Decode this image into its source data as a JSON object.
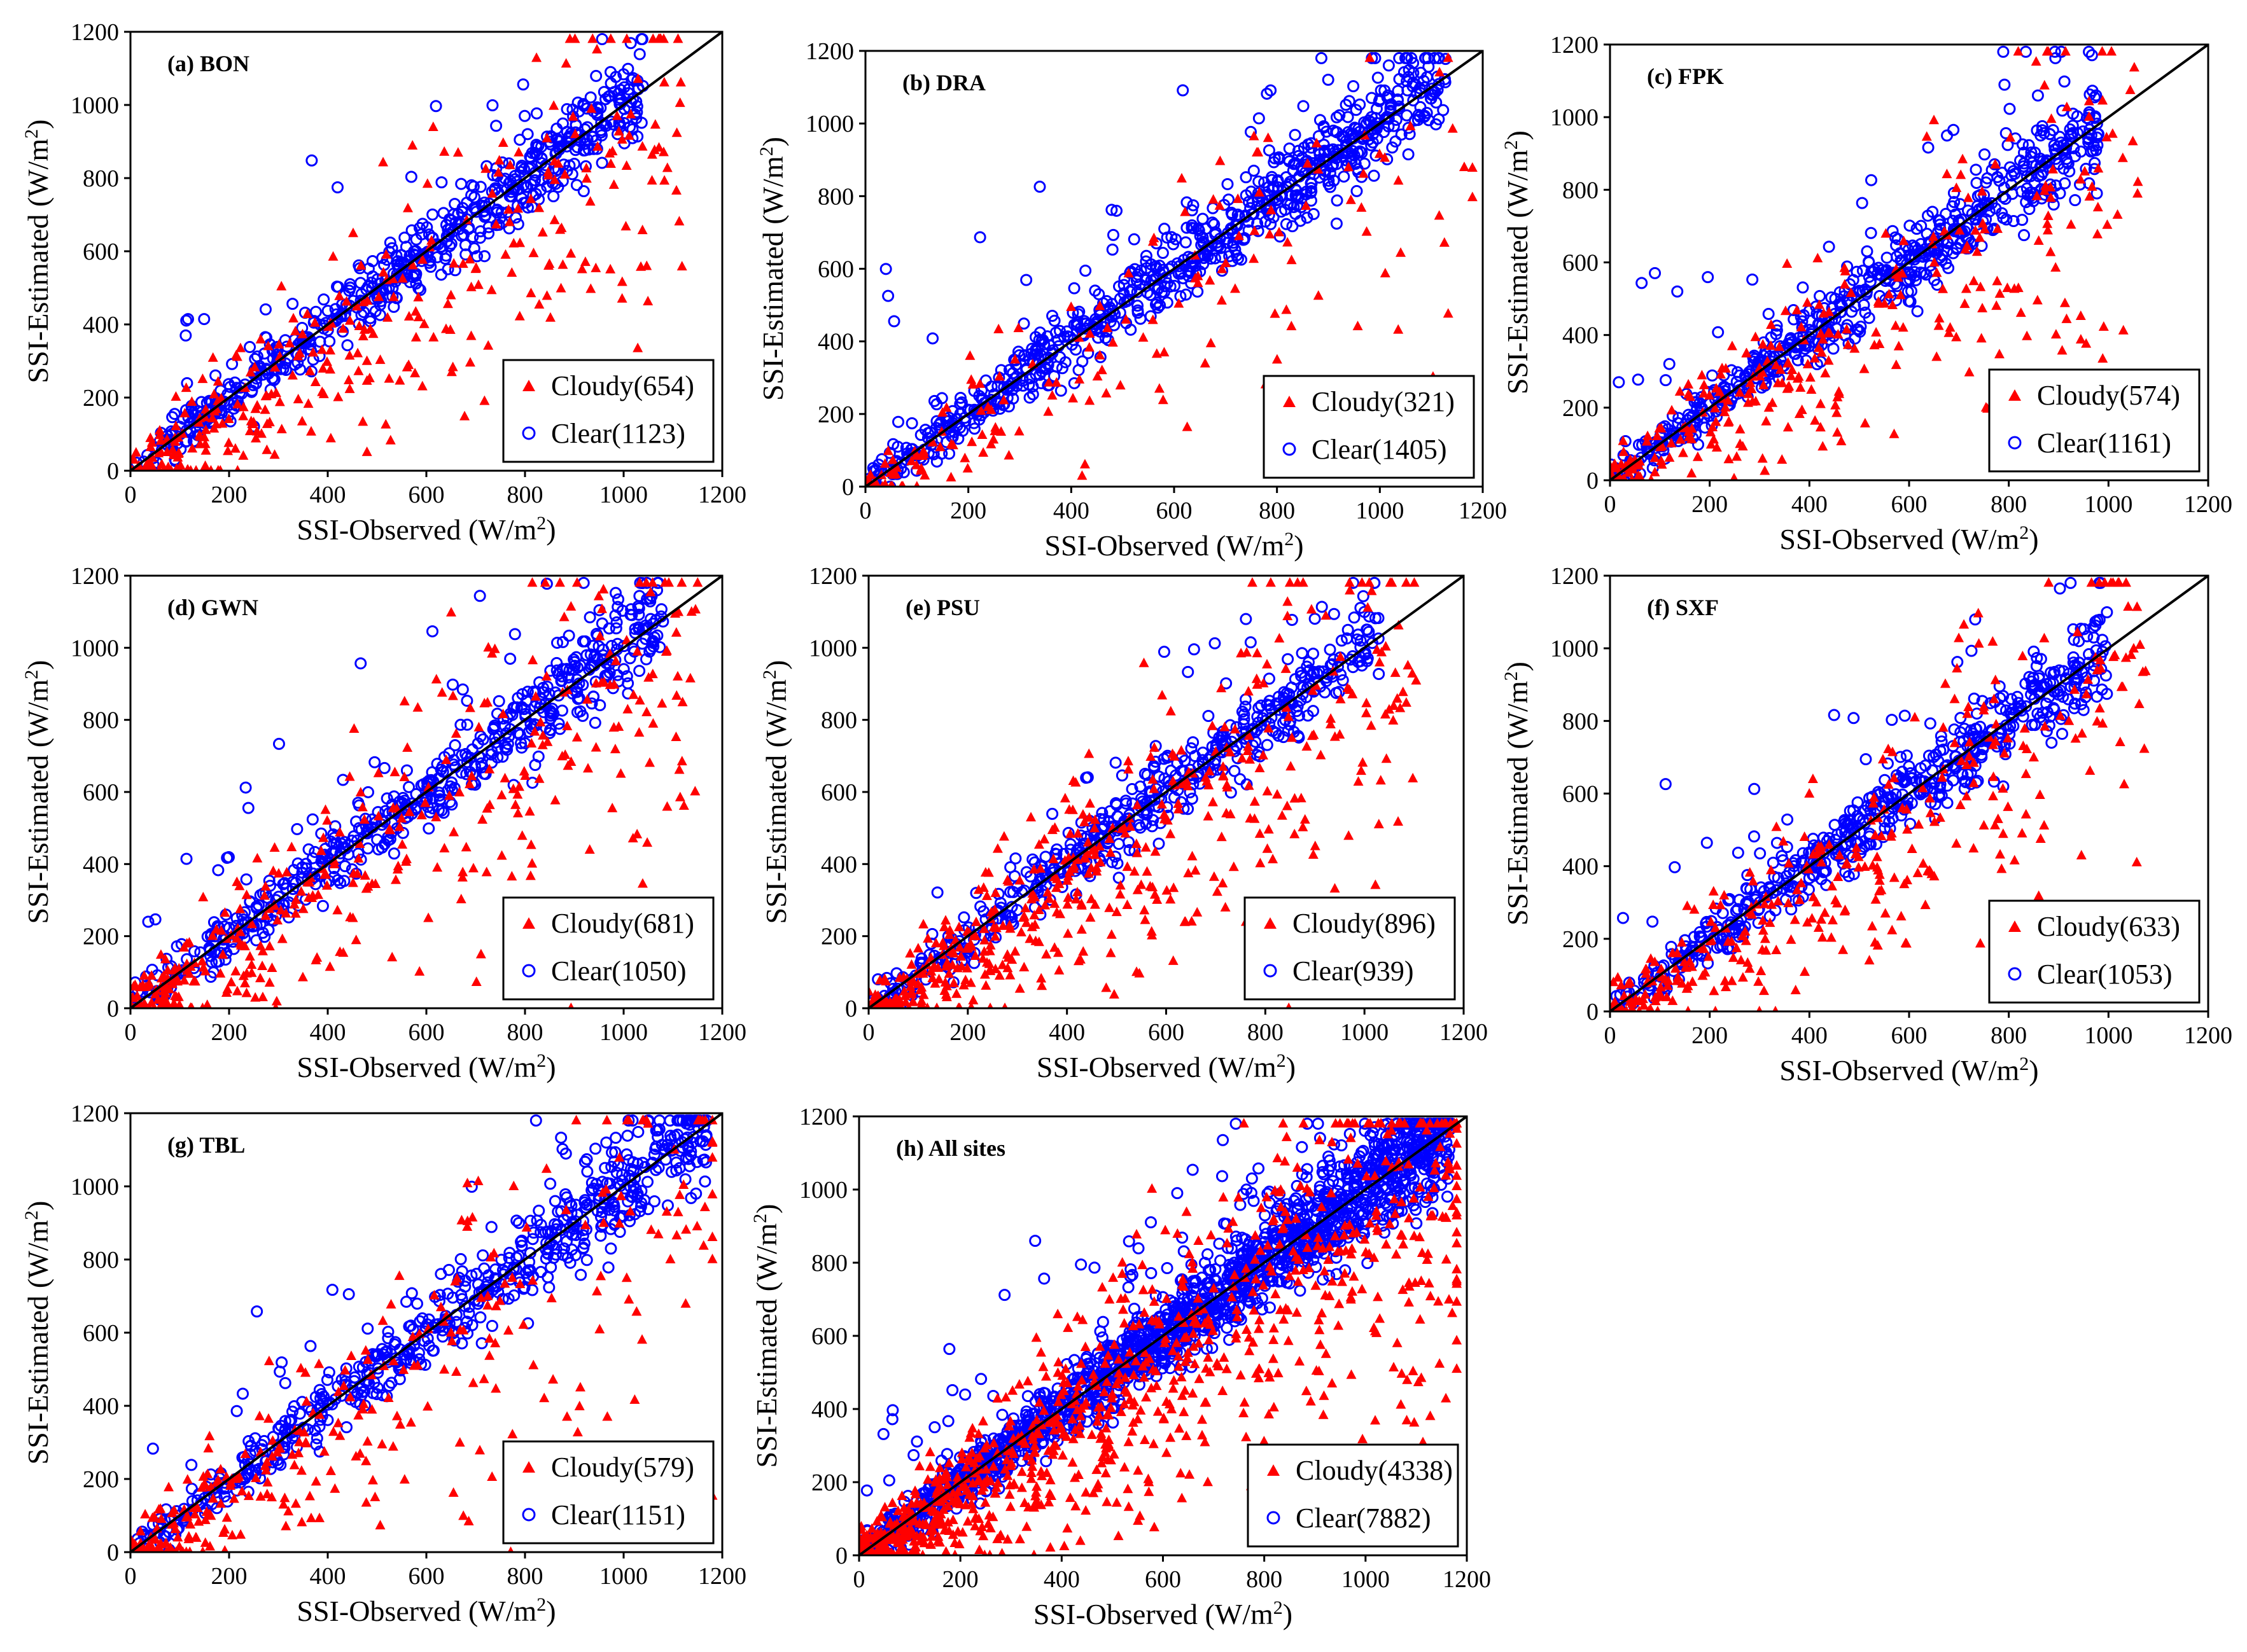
{
  "colors": {
    "cloudy": "#ff0000",
    "clear": "#0000ff",
    "line": "#000000"
  },
  "chart_data": [
    {
      "id": "a",
      "type": "scatter",
      "title": "(a)  BON",
      "xlabel": "SSI-Observed (W/m2)",
      "ylabel": "SSI-Estimated  (W/m2)",
      "xlim": [
        0,
        1200
      ],
      "ylim": [
        0,
        1200
      ],
      "ticks": [
        0,
        200,
        400,
        600,
        800,
        1000,
        1200
      ],
      "series": [
        {
          "name": "Cloudy",
          "legend": "Cloudy(654)",
          "count": 654,
          "marker": "triangle"
        },
        {
          "name": "Clear",
          "legend": "Clear(1123)",
          "count": 1123,
          "marker": "circle"
        }
      ]
    },
    {
      "id": "b",
      "type": "scatter",
      "title": "(b)   DRA",
      "xlabel": "SSI-Observed (W/m2)",
      "ylabel": "SSI-Estimated  (W/m2)",
      "xlim": [
        0,
        1200
      ],
      "ylim": [
        0,
        1200
      ],
      "ticks": [
        0,
        200,
        400,
        600,
        800,
        1000,
        1200
      ],
      "series": [
        {
          "name": "Cloudy",
          "legend": "Cloudy(321)",
          "count": 321,
          "marker": "triangle"
        },
        {
          "name": "Clear",
          "legend": "Clear(1405)",
          "count": 1405,
          "marker": "circle"
        }
      ]
    },
    {
      "id": "c",
      "type": "scatter",
      "title": "(c)  FPK",
      "xlabel": "SSI-Observed (W/m2)",
      "ylabel": "SSI-Estimated  (W/m2)",
      "xlim": [
        0,
        1200
      ],
      "ylim": [
        0,
        1200
      ],
      "ticks": [
        0,
        200,
        400,
        600,
        800,
        1000,
        1200
      ],
      "series": [
        {
          "name": "Cloudy",
          "legend": "Cloudy(574)",
          "count": 574,
          "marker": "triangle"
        },
        {
          "name": "Clear",
          "legend": "Clear(1161)",
          "count": 1161,
          "marker": "circle"
        }
      ]
    },
    {
      "id": "d",
      "type": "scatter",
      "title": "(d)  GWN",
      "xlabel": "SSI-Observed (W/m2)",
      "ylabel": "SSI-Estimated  (W/m2)",
      "xlim": [
        0,
        1200
      ],
      "ylim": [
        0,
        1200
      ],
      "ticks": [
        0,
        200,
        400,
        600,
        800,
        1000,
        1200
      ],
      "series": [
        {
          "name": "Cloudy",
          "legend": "Cloudy(681)",
          "count": 681,
          "marker": "triangle"
        },
        {
          "name": "Clear",
          "legend": "Clear(1050)",
          "count": 1050,
          "marker": "circle"
        }
      ]
    },
    {
      "id": "e",
      "type": "scatter",
      "title": "(e)  PSU",
      "xlabel": "SSI-Observed (W/m2)",
      "ylabel": "SSI-Estimated  (W/m2)",
      "xlim": [
        0,
        1200
      ],
      "ylim": [
        0,
        1200
      ],
      "ticks": [
        0,
        200,
        400,
        600,
        800,
        1000,
        1200
      ],
      "series": [
        {
          "name": "Cloudy",
          "legend": "Cloudy(896)",
          "count": 896,
          "marker": "triangle"
        },
        {
          "name": "Clear",
          "legend": "Clear(939)",
          "count": 939,
          "marker": "circle"
        }
      ]
    },
    {
      "id": "f",
      "type": "scatter",
      "title": "(f)  SXF",
      "xlabel": "SSI-Observed (W/m2)",
      "ylabel": "SSI-Estimated  (W/m2)",
      "xlim": [
        0,
        1200
      ],
      "ylim": [
        0,
        1200
      ],
      "ticks": [
        0,
        200,
        400,
        600,
        800,
        1000,
        1200
      ],
      "series": [
        {
          "name": "Cloudy",
          "legend": "Cloudy(633)",
          "count": 633,
          "marker": "triangle"
        },
        {
          "name": "Clear",
          "legend": "Clear(1053)",
          "count": 1053,
          "marker": "circle"
        }
      ]
    },
    {
      "id": "g",
      "type": "scatter",
      "title": "(g)  TBL",
      "xlabel": "SSI-Observed (W/m2)",
      "ylabel": "SSI-Estimated  (W/m2)",
      "xlim": [
        0,
        1200
      ],
      "ylim": [
        0,
        1200
      ],
      "ticks": [
        0,
        200,
        400,
        600,
        800,
        1000,
        1200
      ],
      "series": [
        {
          "name": "Cloudy",
          "legend": "Cloudy(579)",
          "count": 579,
          "marker": "triangle"
        },
        {
          "name": "Clear",
          "legend": "Clear(1151)",
          "count": 1151,
          "marker": "circle"
        }
      ]
    },
    {
      "id": "h",
      "type": "scatter",
      "title": "(h) All sites",
      "xlabel": "SSI-Observed (W/m2)",
      "ylabel": "SSI-Estimated  (W/m2)",
      "xlim": [
        0,
        1200
      ],
      "ylim": [
        0,
        1200
      ],
      "ticks": [
        0,
        200,
        400,
        600,
        800,
        1000,
        1200
      ],
      "series": [
        {
          "name": "Cloudy",
          "legend": "Cloudy(4338)",
          "count": 4338,
          "marker": "triangle"
        },
        {
          "name": "Clear",
          "legend": "Clear(7882)",
          "count": 7882,
          "marker": "circle"
        }
      ]
    }
  ]
}
